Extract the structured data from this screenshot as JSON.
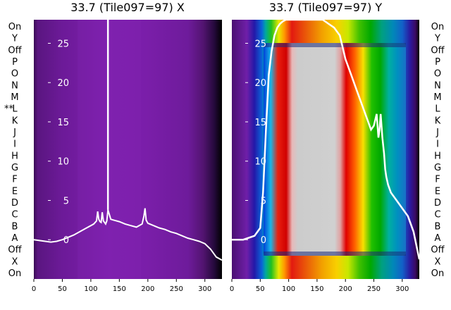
{
  "chart_data": [
    {
      "type": "heatmap",
      "title": "33.7 (Tile097=97) X",
      "xlabel": "",
      "ylabel": "",
      "xlim": [
        0,
        330
      ],
      "ylim": [
        -5,
        28
      ],
      "xticks": [
        0,
        50,
        100,
        150,
        200,
        250,
        300
      ],
      "yticks": [
        0,
        5,
        10,
        15,
        20,
        25
      ],
      "row_labels": [
        "On",
        "Y",
        "Off",
        "P",
        "O",
        "N",
        "M",
        "L",
        "K",
        "J",
        "I",
        "H",
        "G",
        "F",
        "E",
        "D",
        "C",
        "B",
        "A",
        "Off",
        "X",
        "On"
      ],
      "row_marker": "**",
      "marker_row_index": 7,
      "colormap": "purple",
      "vertical_marker_x": 130,
      "series": [
        {
          "x": [
            0,
            10,
            20,
            30,
            40,
            50,
            60,
            70,
            80,
            90,
            100,
            105,
            110,
            112,
            114,
            116,
            118,
            120,
            122,
            124,
            126,
            128,
            130,
            135,
            140,
            150,
            160,
            170,
            180,
            190,
            193,
            195,
            197,
            200,
            210,
            220,
            230,
            240,
            250,
            260,
            270,
            280,
            290,
            300,
            310,
            320,
            330
          ],
          "y": [
            0,
            -0.1,
            -0.2,
            -0.3,
            -0.2,
            0,
            0.3,
            0.6,
            1.0,
            1.4,
            1.8,
            2.0,
            2.4,
            3.6,
            2.6,
            2.3,
            2.2,
            3.5,
            2.4,
            2.2,
            2.0,
            2.4,
            3.8,
            2.6,
            2.5,
            2.3,
            2.0,
            1.8,
            1.6,
            2.0,
            3.0,
            4.0,
            2.5,
            2.1,
            1.8,
            1.5,
            1.3,
            1.0,
            0.8,
            0.5,
            0.2,
            0,
            -0.2,
            -0.5,
            -1.2,
            -2.2,
            -2.6
          ]
        }
      ]
    },
    {
      "type": "heatmap",
      "title": "33.7 (Tile097=97) Y",
      "xlabel": "",
      "ylabel": "",
      "xlim": [
        0,
        330
      ],
      "ylim": [
        -5,
        28
      ],
      "xticks": [
        0,
        50,
        100,
        150,
        200,
        250,
        300
      ],
      "yticks": [
        0,
        5,
        10,
        15,
        20,
        25
      ],
      "row_labels": [
        "On",
        "Y",
        "Off",
        "P",
        "O",
        "N",
        "M",
        "L",
        "K",
        "J",
        "I",
        "H",
        "G",
        "F",
        "E",
        "D",
        "C",
        "B",
        "A",
        "Off",
        "X",
        "On"
      ],
      "colormap": "spectral",
      "series": [
        {
          "x": [
            0,
            20,
            40,
            50,
            55,
            60,
            65,
            70,
            75,
            80,
            85,
            90,
            95,
            100,
            110,
            120,
            130,
            140,
            150,
            160,
            170,
            180,
            190,
            200,
            210,
            220,
            230,
            235,
            240,
            245,
            250,
            255,
            258,
            260,
            262,
            265,
            268,
            270,
            272,
            275,
            280,
            290,
            300,
            310,
            320,
            330
          ],
          "y": [
            0,
            0,
            0.5,
            1.5,
            6,
            14,
            21,
            24,
            26,
            27,
            27.5,
            27.8,
            28,
            28,
            28,
            28,
            28,
            28,
            28,
            28,
            27.5,
            27,
            26,
            23,
            21,
            19,
            17,
            16,
            15,
            14,
            14.5,
            16,
            13,
            14,
            16,
            13,
            11,
            9,
            8,
            7,
            6,
            5,
            4,
            3,
            1,
            -2.5
          ]
        }
      ]
    }
  ]
}
